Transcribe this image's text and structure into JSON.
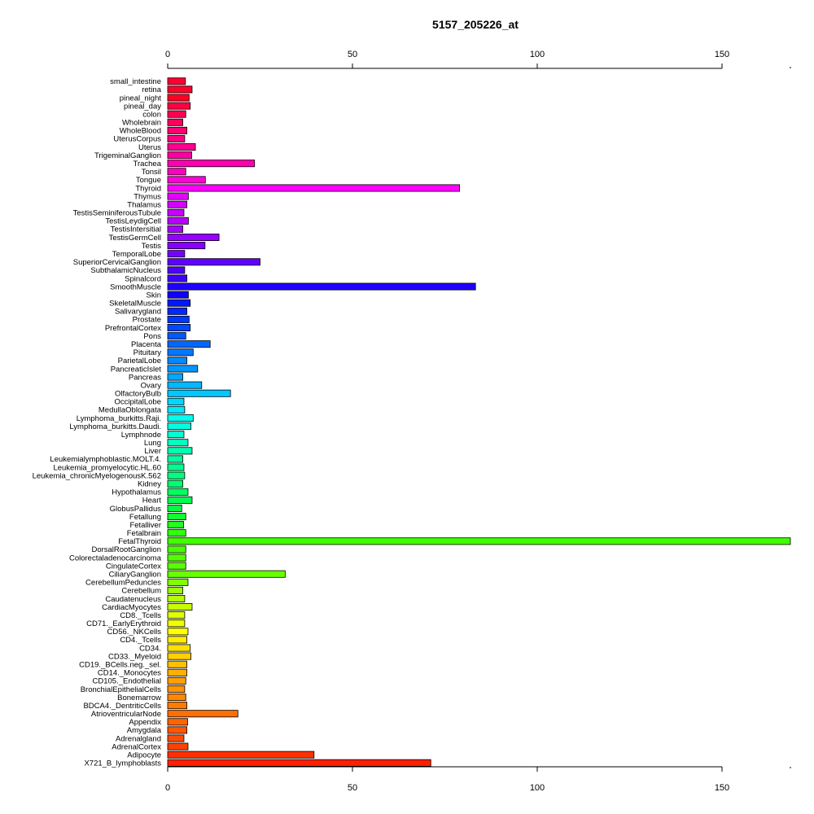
{
  "chart_data": {
    "type": "bar",
    "orientation": "horizontal",
    "title": "5157_205226_at",
    "xlabel": "",
    "ylabel": "",
    "xlim": [
      0,
      165
    ],
    "xticks": [
      0,
      50,
      100,
      150
    ],
    "grid": false,
    "legend": "none",
    "categories": [
      "small_intestine",
      "retina",
      "pineal_night",
      "pineal_day",
      "colon",
      "Wholebrain",
      "WholeBlood",
      "UterusCorpus",
      "Uterus",
      "TrigeminalGanglion",
      "Trachea",
      "Tonsil",
      "Tongue",
      "Thyroid",
      "Thymus",
      "Thalamus",
      "TestisSeminiferousTubule",
      "TestisLeydigCell",
      "TestisIntersitial",
      "TestisGermCell",
      "Testis",
      "TemporalLobe",
      "SuperiorCervicalGanglion",
      "SubthalamicNucleus",
      "Spinalcord",
      "SmoothMuscle",
      "Skin",
      "SkeletalMuscle",
      "Salivarygland",
      "Prostate",
      "PrefrontalCortex",
      "Pons",
      "Placenta",
      "Pituitary",
      "ParietalLobe",
      "PancreaticIslet",
      "Pancreas",
      "Ovary",
      "OlfactoryBulb",
      "OccipitalLobe",
      "MedullaOblongata",
      "Lymphoma_burkitts.Raji.",
      "Lymphoma_burkitts.Daudi.",
      "Lymphnode",
      "Lung",
      "Liver",
      "Leukemialymphoblastic.MOLT.4.",
      "Leukemia_promyelocytic.HL.60",
      "Leukemia_chronicMyelogenousK.562",
      "Kidney",
      "Hypothalamus",
      "Heart",
      "GlobusPallidus",
      "Fetallung",
      "Fetalliver",
      "Fetalbrain",
      "FetalThyroid",
      "DorsalRootGanglion",
      "Colorectaladenocarcinoma",
      "CingulateCortex",
      "CiliaryGanglion",
      "CerebellumPeduncles",
      "Cerebellum",
      "Caudatenucleus",
      "CardiacMyocytes",
      "CD8._Tcells",
      "CD71._EarlyErythroid",
      "CD56._NKCells",
      "CD4._Tcells",
      "CD34.",
      "CD33._Myeloid",
      "CD19._BCells.neg._sel.",
      "CD14._Monocytes",
      "CD105._Endothelial",
      "BronchialEpithelialCells",
      "Bonemarrow",
      "BDCA4._DentriticCells",
      "AtrioventricularNode",
      "Appendix",
      "Amygdala",
      "Adrenalgland",
      "AdrenalCortex",
      "Adipocyte",
      "X721_B_lymphoblasts"
    ],
    "values": [
      4.8,
      6.6,
      5.8,
      6.1,
      4.9,
      4.1,
      5.2,
      4.6,
      7.5,
      6.5,
      23.5,
      4.9,
      10.2,
      79.0,
      5.6,
      5.2,
      4.4,
      5.6,
      4.1,
      13.9,
      10.1,
      4.6,
      25.0,
      4.6,
      5.2,
      83.3,
      5.6,
      6.1,
      5.2,
      5.8,
      6.1,
      4.9,
      11.5,
      6.9,
      5.2,
      8.1,
      4.1,
      9.2,
      17.0,
      4.4,
      4.6,
      6.9,
      6.3,
      4.4,
      5.5,
      6.6,
      4.1,
      4.4,
      4.6,
      4.1,
      5.5,
      6.6,
      3.8,
      4.9,
      4.3,
      4.9,
      168.5,
      4.9,
      4.9,
      4.9,
      31.8,
      5.5,
      4.1,
      4.6,
      6.6,
      4.6,
      4.6,
      5.5,
      5.2,
      6.1,
      6.3,
      5.2,
      5.2,
      4.9,
      4.6,
      4.9,
      5.2,
      19.0,
      5.4,
      5.2,
      4.4,
      5.5,
      39.6,
      71.2
    ],
    "colors": [
      "#ff0030",
      "#ff0028",
      "#ff0020",
      "#ff0040",
      "#ff0050",
      "#ff0060",
      "#ff0070",
      "#ff0080",
      "#ff0090",
      "#ff00a0",
      "#ff00b0",
      "#ff00c0",
      "#ff00d8",
      "#ff00ff",
      "#e800ff",
      "#d800ff",
      "#c800ff",
      "#b800ff",
      "#a800ff",
      "#9800ff",
      "#8800ff",
      "#7800ff",
      "#6000ff",
      "#5000ff",
      "#4000ff",
      "#2000ff",
      "#1000ff",
      "#0018ff",
      "#0028ff",
      "#0038ff",
      "#0048ff",
      "#0058ff",
      "#0068ff",
      "#0078ff",
      "#0088ff",
      "#0098ff",
      "#00a8ff",
      "#00b8ff",
      "#00c8ff",
      "#00d8ff",
      "#00e8ff",
      "#00fff0",
      "#00ffe0",
      "#00ffd0",
      "#00ffc0",
      "#00ffb0",
      "#00ffa0",
      "#00ff90",
      "#00ff80",
      "#00ff70",
      "#00ff60",
      "#00ff50",
      "#00ff40",
      "#10ff30",
      "#20ff20",
      "#30ff10",
      "#40ff00",
      "#48ff00",
      "#50ff00",
      "#58ff00",
      "#68ff00",
      "#80ff00",
      "#98ff00",
      "#b0ff00",
      "#c8ff00",
      "#e0ff00",
      "#f0ff00",
      "#ffff00",
      "#ffee00",
      "#ffe000",
      "#ffd000",
      "#ffc000",
      "#ffb000",
      "#ffa000",
      "#ff9400",
      "#ff8800",
      "#ff7c00",
      "#ff7000",
      "#ff6400",
      "#ff5800",
      "#ff4c00",
      "#ff4000",
      "#ff3000",
      "#ff2000"
    ]
  }
}
